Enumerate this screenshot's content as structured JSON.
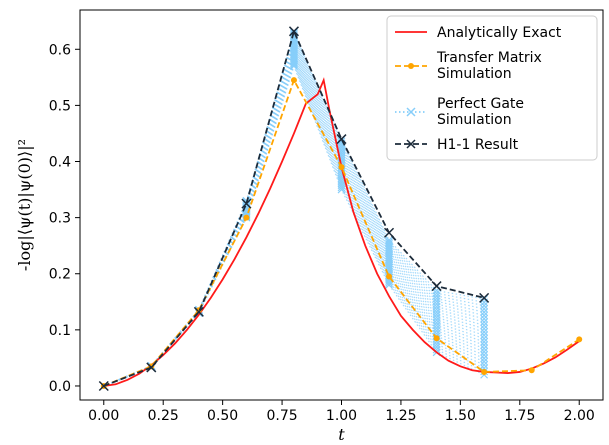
{
  "chart_data": {
    "type": "line",
    "xlabel": "t",
    "ylabel": "-log|⟨ψ(t)|ψ(0)⟩|²",
    "xlim": [
      -0.1,
      2.1
    ],
    "ylim": [
      -0.025,
      0.67
    ],
    "xticks": [
      "0.00",
      "0.25",
      "0.50",
      "0.75",
      "1.00",
      "1.25",
      "1.50",
      "1.75",
      "2.00"
    ],
    "yticks": [
      "0.0",
      "0.1",
      "0.2",
      "0.3",
      "0.4",
      "0.5",
      "0.6"
    ],
    "legend_position": "top-right",
    "series": [
      {
        "name": "Analytically Exact",
        "color": "#ff1a1a",
        "style": "solid",
        "marker": "none",
        "x": [
          0.0,
          0.05,
          0.1,
          0.15,
          0.2,
          0.25,
          0.3,
          0.35,
          0.4,
          0.45,
          0.5,
          0.55,
          0.6,
          0.65,
          0.7,
          0.75,
          0.8,
          0.85,
          0.9,
          0.925,
          0.95,
          1.0,
          1.05,
          1.1,
          1.15,
          1.2,
          1.25,
          1.3,
          1.35,
          1.4,
          1.45,
          1.5,
          1.55,
          1.6,
          1.65,
          1.7,
          1.75,
          1.8,
          1.85,
          1.9,
          1.95,
          2.0
        ],
        "y": [
          0.0,
          0.003,
          0.011,
          0.022,
          0.037,
          0.055,
          0.076,
          0.1,
          0.127,
          0.157,
          0.19,
          0.226,
          0.265,
          0.307,
          0.352,
          0.4,
          0.45,
          0.503,
          0.52,
          0.545,
          0.49,
          0.39,
          0.31,
          0.25,
          0.2,
          0.16,
          0.125,
          0.1,
          0.078,
          0.06,
          0.045,
          0.035,
          0.028,
          0.025,
          0.024,
          0.023,
          0.025,
          0.031,
          0.04,
          0.051,
          0.065,
          0.08
        ]
      },
      {
        "name": "Transfer Matrix Simulation",
        "color": "#ffa500",
        "style": "dashed",
        "marker": "dot",
        "x": [
          0.0,
          0.2,
          0.4,
          0.6,
          0.8,
          1.0,
          1.2,
          1.4,
          1.6,
          1.8,
          2.0
        ],
        "y": [
          0.0,
          0.035,
          0.135,
          0.3,
          0.545,
          0.39,
          0.195,
          0.085,
          0.025,
          0.028,
          0.083
        ]
      },
      {
        "name": "Perfect Gate Simulation",
        "color": "#87cefa",
        "style": "dotted",
        "marker": "x",
        "x_samples": [
          0.0,
          0.2,
          0.4,
          0.6,
          0.8,
          1.0,
          1.2,
          1.4,
          1.6
        ],
        "y_low": [
          0.0,
          0.033,
          0.13,
          0.3,
          0.57,
          0.35,
          0.18,
          0.06,
          0.02
        ],
        "y_high": [
          0.0,
          0.036,
          0.136,
          0.33,
          0.63,
          0.44,
          0.26,
          0.17,
          0.155
        ]
      },
      {
        "name": "H1-1 Result",
        "color": "#1c2b3a",
        "style": "dashed",
        "marker": "x",
        "x": [
          0.0,
          0.2,
          0.4,
          0.6,
          0.8,
          1.0,
          1.2,
          1.4,
          1.6
        ],
        "y": [
          0.0,
          0.033,
          0.132,
          0.325,
          0.632,
          0.44,
          0.273,
          0.178,
          0.157
        ]
      }
    ]
  },
  "legend": {
    "items": [
      {
        "lines": [
          "Analytically Exact"
        ]
      },
      {
        "lines": [
          "Transfer Matrix",
          "Simulation"
        ]
      },
      {
        "lines": [
          "Perfect Gate",
          "Simulation"
        ]
      },
      {
        "lines": [
          "H1-1 Result"
        ]
      }
    ]
  }
}
